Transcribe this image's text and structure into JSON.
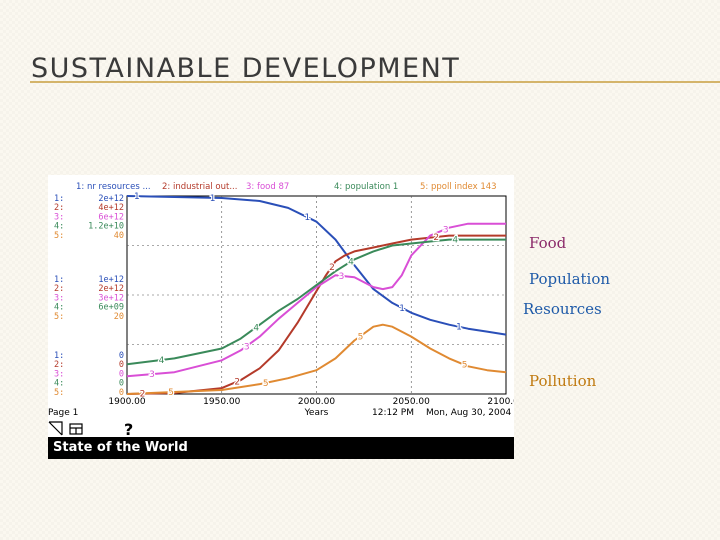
{
  "slide": {
    "title": "SUSTAINABLE DEVELOPMENT",
    "side_labels": {
      "food": "Food",
      "population": "Population",
      "resources": "Resources",
      "pollution": "Pollution"
    }
  },
  "window": {
    "page_label": "Page 1",
    "help_glyph": "?",
    "footer_title": "State of the World",
    "time_label": "12:12 PM",
    "date_label": "Mon, Aug 30, 2004"
  },
  "colors": {
    "s1": "#2a4fb8",
    "s2": "#b43a2a",
    "s3": "#d94fd6",
    "s4": "#3a8a5a",
    "s5": "#e08a32"
  },
  "chart_data": {
    "type": "line",
    "xlabel": "Years",
    "xlim": [
      1900,
      2100
    ],
    "xticks": [
      "1900.00",
      "1950.00",
      "2000.00",
      "2050.00",
      "2100.00"
    ],
    "legend": [
      {
        "num": "1",
        "label": "nr resources ..."
      },
      {
        "num": "2",
        "label": "industrial out..."
      },
      {
        "num": "3",
        "label": "food 87"
      },
      {
        "num": "4",
        "label": "population 1"
      },
      {
        "num": "5",
        "label": "ppoll index 143"
      }
    ],
    "scale_top": [
      "2e+12",
      "4e+12",
      "6e+12",
      "1.2e+10",
      "40"
    ],
    "scale_mid": [
      "1e+12",
      "2e+12",
      "3e+12",
      "6e+09",
      "20"
    ],
    "scale_bottom": [
      "0",
      "0",
      "0",
      "0",
      "0"
    ],
    "series": [
      {
        "num": "1",
        "x": [
          1900,
          1950,
          1970,
          1985,
          2000,
          2010,
          2020,
          2030,
          2040,
          2050,
          2060,
          2070,
          2080,
          2090,
          2100
        ],
        "y": [
          1.0,
          0.99,
          0.975,
          0.94,
          0.87,
          0.78,
          0.65,
          0.53,
          0.46,
          0.41,
          0.375,
          0.35,
          0.33,
          0.315,
          0.3
        ]
      },
      {
        "num": "2",
        "x": [
          1900,
          1925,
          1950,
          1960,
          1970,
          1980,
          1990,
          2000,
          2005,
          2010,
          2015,
          2020,
          2030,
          2040,
          2050,
          2060,
          2070,
          2080,
          2100
        ],
        "y": [
          0.0,
          0.005,
          0.03,
          0.07,
          0.13,
          0.22,
          0.36,
          0.52,
          0.6,
          0.67,
          0.7,
          0.72,
          0.74,
          0.76,
          0.78,
          0.79,
          0.8,
          0.8,
          0.8
        ]
      },
      {
        "num": "3",
        "x": [
          1900,
          1925,
          1950,
          1960,
          1970,
          1980,
          1990,
          2000,
          2010,
          2020,
          2030,
          2035,
          2040,
          2045,
          2050,
          2060,
          2070,
          2080,
          2090,
          2100
        ],
        "y": [
          0.09,
          0.11,
          0.17,
          0.22,
          0.29,
          0.38,
          0.46,
          0.54,
          0.6,
          0.59,
          0.54,
          0.53,
          0.54,
          0.6,
          0.7,
          0.8,
          0.84,
          0.86,
          0.86,
          0.86
        ]
      },
      {
        "num": "4",
        "x": [
          1900,
          1925,
          1950,
          1960,
          1970,
          1980,
          1990,
          2000,
          2010,
          2020,
          2030,
          2040,
          2050,
          2060,
          2070,
          2080,
          2090,
          2100
        ],
        "y": [
          0.15,
          0.18,
          0.23,
          0.28,
          0.35,
          0.42,
          0.48,
          0.55,
          0.62,
          0.68,
          0.72,
          0.75,
          0.76,
          0.77,
          0.78,
          0.78,
          0.78,
          0.78
        ]
      },
      {
        "num": "5",
        "x": [
          1900,
          1950,
          1970,
          1985,
          2000,
          2010,
          2020,
          2030,
          2035,
          2040,
          2050,
          2060,
          2070,
          2080,
          2090,
          2100
        ],
        "y": [
          0.0,
          0.02,
          0.05,
          0.08,
          0.12,
          0.18,
          0.27,
          0.34,
          0.35,
          0.34,
          0.29,
          0.23,
          0.18,
          0.14,
          0.12,
          0.11
        ]
      }
    ]
  }
}
